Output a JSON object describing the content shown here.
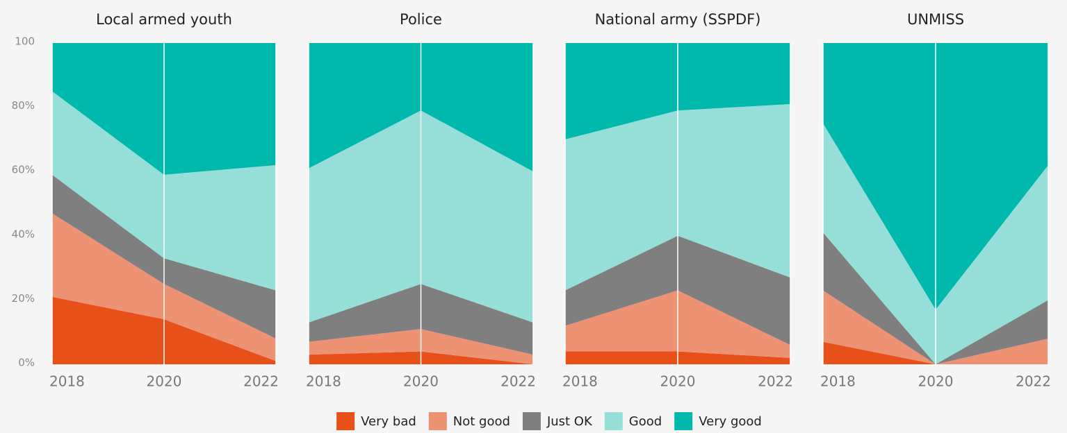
{
  "chart_data": [
    {
      "type": "stacked_area",
      "title": "Local armed youth",
      "x": [
        2018,
        2020,
        2022
      ],
      "xlim": [
        2018,
        2022
      ],
      "xticks": [
        2018,
        2020,
        2022
      ],
      "ylim": [
        0,
        100
      ],
      "yticks": [
        {
          "value": 0,
          "label": "0%"
        },
        {
          "value": 20,
          "label": "20%"
        },
        {
          "value": 40,
          "label": "40%"
        },
        {
          "value": 60,
          "label": "60%"
        },
        {
          "value": 80,
          "label": "80%"
        },
        100
      ],
      "series": [
        {
          "name": "Very bad",
          "color": "#e8501a",
          "values": [
            21,
            14,
            1
          ]
        },
        {
          "name": "Not good",
          "color": "#ed9373",
          "values": [
            26,
            11,
            7
          ]
        },
        {
          "name": "Just OK",
          "color": "#7f7f7f",
          "values": [
            12,
            8,
            15
          ]
        },
        {
          "name": "Good",
          "color": "#96dfd8",
          "values": [
            26,
            26,
            39
          ]
        },
        {
          "name": "Very good",
          "color": "#00b8ac",
          "values": [
            15,
            41,
            38
          ]
        }
      ]
    },
    {
      "type": "stacked_area",
      "title": "Police",
      "x": [
        2018,
        2020,
        2022
      ],
      "xlim": [
        2018,
        2022
      ],
      "xticks": [
        2018,
        2020,
        2022
      ],
      "ylim": [
        0,
        100
      ],
      "series": [
        {
          "name": "Very bad",
          "color": "#e8501a",
          "values": [
            3,
            4,
            0
          ]
        },
        {
          "name": "Not good",
          "color": "#ed9373",
          "values": [
            4,
            7,
            3
          ]
        },
        {
          "name": "Just OK",
          "color": "#7f7f7f",
          "values": [
            6,
            14,
            10
          ]
        },
        {
          "name": "Good",
          "color": "#96dfd8",
          "values": [
            48,
            54,
            47
          ]
        },
        {
          "name": "Very good",
          "color": "#00b8ac",
          "values": [
            39,
            21,
            40
          ]
        }
      ]
    },
    {
      "type": "stacked_area",
      "title": "National army (SSPDF)",
      "x": [
        2018,
        2020,
        2022
      ],
      "xlim": [
        2018,
        2022
      ],
      "xticks": [
        2018,
        2020,
        2022
      ],
      "ylim": [
        0,
        100
      ],
      "series": [
        {
          "name": "Very bad",
          "color": "#e8501a",
          "values": [
            4,
            4,
            2
          ]
        },
        {
          "name": "Not good",
          "color": "#ed9373",
          "values": [
            8,
            19,
            4
          ]
        },
        {
          "name": "Just OK",
          "color": "#7f7f7f",
          "values": [
            11,
            17,
            21
          ]
        },
        {
          "name": "Good",
          "color": "#96dfd8",
          "values": [
            47,
            39,
            54
          ]
        },
        {
          "name": "Very good",
          "color": "#00b8ac",
          "values": [
            30,
            21,
            19
          ]
        }
      ]
    },
    {
      "type": "stacked_area",
      "title": "UNMISS",
      "x": [
        2018,
        2020,
        2022
      ],
      "xlim": [
        2018,
        2022
      ],
      "xticks": [
        2018,
        2020,
        2022
      ],
      "ylim": [
        0,
        100
      ],
      "series": [
        {
          "name": "Very bad",
          "color": "#e8501a",
          "values": [
            7,
            0,
            0
          ]
        },
        {
          "name": "Not good",
          "color": "#ed9373",
          "values": [
            16,
            0,
            8
          ]
        },
        {
          "name": "Just OK",
          "color": "#7f7f7f",
          "values": [
            18,
            0,
            12
          ]
        },
        {
          "name": "Good",
          "color": "#96dfd8",
          "values": [
            34,
            17,
            42
          ]
        },
        {
          "name": "Very good",
          "color": "#00b8ac",
          "values": [
            25,
            83,
            38
          ]
        }
      ]
    }
  ]
}
